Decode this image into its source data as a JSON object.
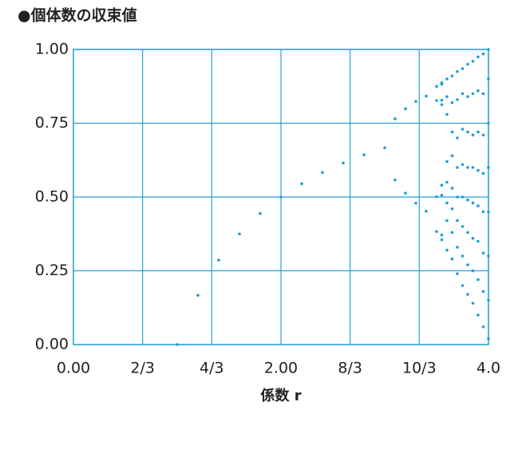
{
  "chart_data": {
    "type": "scatter",
    "title": "●個体数の収束値",
    "x_label": "係数 r",
    "series": [
      {
        "color": "#1a9fd9",
        "x": [
          1.0,
          1.2,
          1.4,
          1.6,
          1.8,
          2.0,
          2.2,
          2.4,
          2.6,
          2.8,
          3.0,
          3.1,
          3.1,
          3.2,
          3.2,
          3.3,
          3.3,
          3.4,
          3.4,
          3.5,
          3.5,
          3.5,
          3.5,
          3.55,
          3.55,
          3.55,
          3.55,
          3.55,
          3.55,
          3.55,
          3.55,
          3.6,
          3.6,
          3.6,
          3.6,
          3.6,
          3.6,
          3.6,
          3.6,
          3.65,
          3.65,
          3.65,
          3.65,
          3.65,
          3.65,
          3.65,
          3.65,
          3.7,
          3.7,
          3.7,
          3.7,
          3.7,
          3.7,
          3.7,
          3.7,
          3.75,
          3.75,
          3.75,
          3.75,
          3.75,
          3.75,
          3.75,
          3.75,
          3.8,
          3.8,
          3.8,
          3.8,
          3.8,
          3.8,
          3.8,
          3.8,
          3.85,
          3.85,
          3.85,
          3.85,
          3.85,
          3.85,
          3.85,
          3.85,
          3.9,
          3.9,
          3.9,
          3.9,
          3.9,
          3.9,
          3.9,
          3.9,
          3.95,
          3.95,
          3.95,
          3.95,
          3.95,
          3.95,
          3.95,
          3.95,
          4.0,
          4.0,
          4.0,
          4.0,
          4.0,
          4.0,
          4.0,
          4.0
        ],
        "values": [
          0,
          0.167,
          0.286,
          0.375,
          0.444,
          0.5,
          0.545,
          0.583,
          0.615,
          0.643,
          0.667,
          0.765,
          0.558,
          0.799,
          0.513,
          0.824,
          0.479,
          0.842,
          0.452,
          0.383,
          0.501,
          0.827,
          0.875,
          0.355,
          0.371,
          0.506,
          0.54,
          0.813,
          0.828,
          0.882,
          0.887,
          0.32,
          0.42,
          0.48,
          0.55,
          0.62,
          0.78,
          0.84,
          0.9,
          0.29,
          0.38,
          0.46,
          0.53,
          0.64,
          0.72,
          0.82,
          0.91,
          0.24,
          0.33,
          0.42,
          0.5,
          0.6,
          0.7,
          0.83,
          0.925,
          0.2,
          0.3,
          0.4,
          0.5,
          0.61,
          0.73,
          0.85,
          0.935,
          0.17,
          0.27,
          0.38,
          0.49,
          0.6,
          0.72,
          0.84,
          0.95,
          0.14,
          0.25,
          0.36,
          0.48,
          0.6,
          0.71,
          0.85,
          0.96,
          0.1,
          0.22,
          0.35,
          0.47,
          0.59,
          0.72,
          0.86,
          0.975,
          0.06,
          0.18,
          0.31,
          0.45,
          0.58,
          0.71,
          0.85,
          0.985,
          0.02,
          0.15,
          0.3,
          0.45,
          0.6,
          0.75,
          0.9,
          1.0
        ]
      }
    ],
    "xlim": [
      0,
      4
    ],
    "ylim": [
      0,
      1
    ],
    "xticks": [
      {
        "value": 0,
        "label": "0.00"
      },
      {
        "value": 0.6667,
        "label": "2/3"
      },
      {
        "value": 1.3333,
        "label": "4/3"
      },
      {
        "value": 2,
        "label": "2.00"
      },
      {
        "value": 2.6667,
        "label": "8/3"
      },
      {
        "value": 3.3333,
        "label": "10/3"
      },
      {
        "value": 4,
        "label": "4.0"
      }
    ],
    "yticks": [
      {
        "value": 0,
        "label": "0.00"
      },
      {
        "value": 0.25,
        "label": "0.25"
      },
      {
        "value": 0.5,
        "label": "0.50"
      },
      {
        "value": 0.75,
        "label": "0.75"
      },
      {
        "value": 1,
        "label": "1.00"
      }
    ],
    "grid": true
  }
}
